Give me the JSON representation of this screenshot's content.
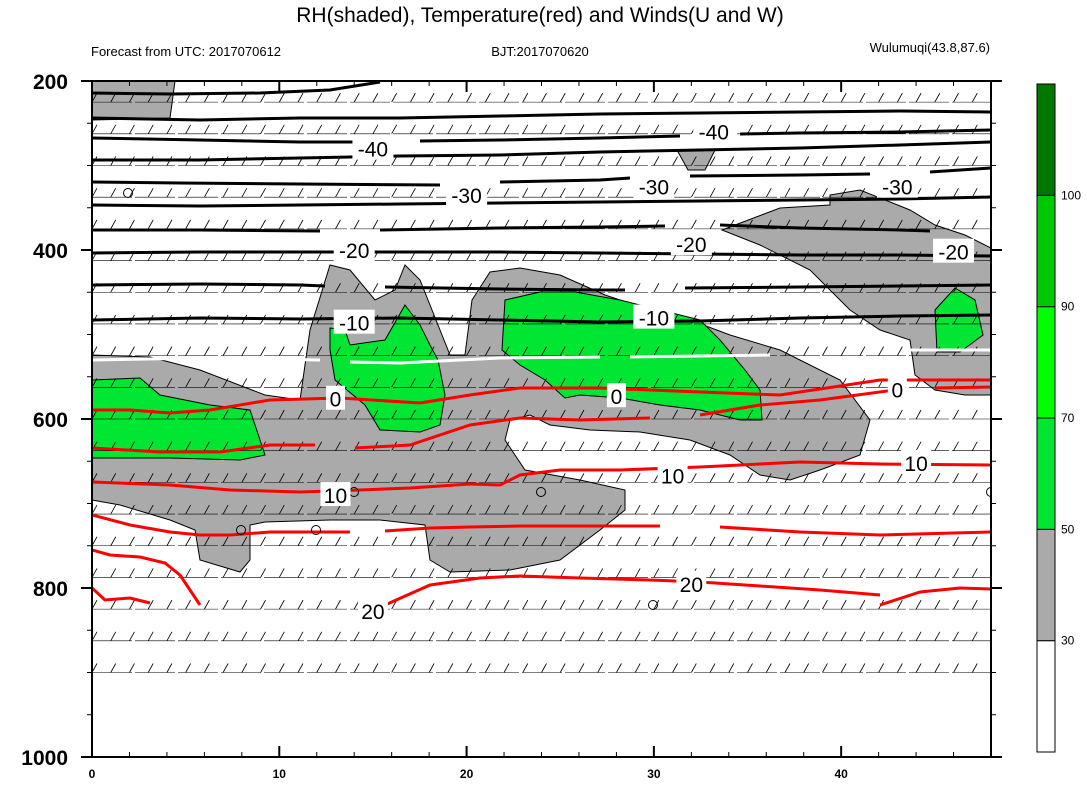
{
  "chart_data": {
    "type": "contour",
    "title": "RH(shaded), Temperature(red) and Winds(U and W)",
    "subtitle_left": "Forecast from UTC: 2017070612",
    "subtitle_center": "BJT:2017070620",
    "subtitle_right": "Wulumuqi(43.8,87.6)",
    "x_ticks": [
      "0",
      "10",
      "20",
      "30",
      "40"
    ],
    "x_tick_values": [
      0,
      10,
      20,
      30,
      40
    ],
    "xlim": [
      0,
      48
    ],
    "y_ticks": [
      "200",
      "400",
      "600",
      "800",
      "1000"
    ],
    "y_tick_values": [
      200,
      400,
      600,
      800,
      1000
    ],
    "ylim": [
      200,
      1000
    ],
    "colorbar": {
      "labels": [
        "30",
        "50",
        "70",
        "90",
        "100"
      ],
      "label_values": [
        30,
        50,
        70,
        90,
        100
      ],
      "colors": [
        "#ffffff",
        "#aaaaaa",
        "#00e632",
        "#00ff00",
        "#00c800",
        "#007800"
      ]
    },
    "temperature_labels": [
      {
        "text": "-40",
        "x": 33.2,
        "p": 260
      },
      {
        "text": "-40",
        "x": 15.0,
        "p": 280
      },
      {
        "text": "-30",
        "x": 20.0,
        "p": 335
      },
      {
        "text": "-30",
        "x": 30.0,
        "p": 325
      },
      {
        "text": "-30",
        "x": 43.0,
        "p": 325
      },
      {
        "text": "-20",
        "x": 14.0,
        "p": 400
      },
      {
        "text": "-20",
        "x": 32.0,
        "p": 393
      },
      {
        "text": "-20",
        "x": 46.0,
        "p": 402
      },
      {
        "text": "-10",
        "x": 14.0,
        "p": 486
      },
      {
        "text": "-10",
        "x": 30.0,
        "p": 480
      },
      {
        "text": "0",
        "x": 13.0,
        "p": 576
      },
      {
        "text": "0",
        "x": 28.0,
        "p": 573
      },
      {
        "text": "0",
        "x": 43.0,
        "p": 565
      },
      {
        "text": "10",
        "x": 13.0,
        "p": 690
      },
      {
        "text": "10",
        "x": 31.0,
        "p": 667
      },
      {
        "text": "10",
        "x": 44.0,
        "p": 652
      },
      {
        "text": "20",
        "x": 15.0,
        "p": 827
      },
      {
        "text": "20",
        "x": 32.0,
        "p": 795
      }
    ]
  }
}
